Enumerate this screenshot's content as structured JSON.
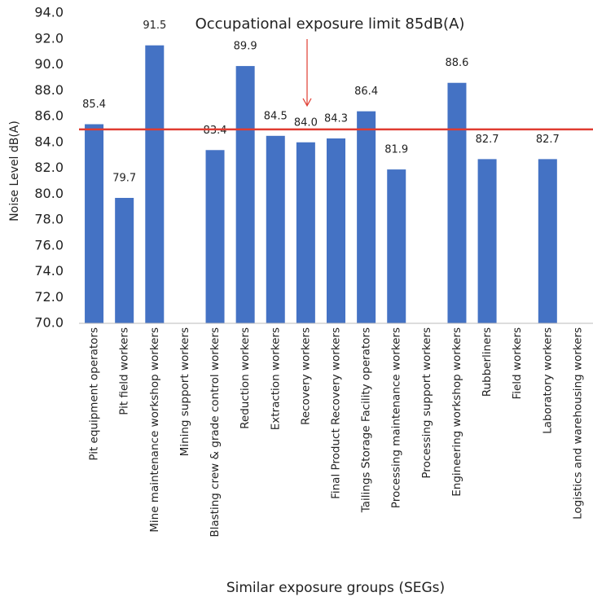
{
  "chart_data": {
    "type": "bar",
    "categories": [
      "Pit equipment operators",
      "Pit field workers",
      "Mine maintenance workshop workers",
      "Mining support workers",
      "Blasting crew & grade control workers",
      "Reduction workers",
      "Extraction workers",
      "Recovery workers",
      "Final Product Recovery workers",
      "Tailings Storage Facility  operators",
      "Processing maintenance workers",
      "Processing support workers",
      "Engineering workshop workers",
      "Rubberliners",
      "Field workers",
      "Laboratory workers",
      "Logistics and warehousing workers"
    ],
    "values": [
      85.4,
      79.7,
      91.5,
      null,
      83.4,
      89.9,
      84.5,
      84.0,
      84.3,
      86.4,
      81.9,
      null,
      88.6,
      82.7,
      null,
      82.7,
      null
    ],
    "value_labels": [
      "85.4",
      "79.7",
      "91.5",
      null,
      "83.4",
      "89.9",
      "84.5",
      "84.0",
      "84.3",
      "86.4",
      "81.9",
      null,
      "88.6",
      "82.7",
      null,
      "82.7",
      null
    ],
    "color": "#4472c4",
    "ylim": [
      70,
      94
    ],
    "yticks": [
      {
        "value": 70,
        "label": "70.0"
      },
      {
        "value": 72,
        "label": "72.0"
      },
      {
        "value": 74,
        "label": "74.0"
      },
      {
        "value": 76,
        "label": "76.0"
      },
      {
        "value": 78,
        "label": "78.0"
      },
      {
        "value": 80,
        "label": "80.0"
      },
      {
        "value": 82,
        "label": "82.0"
      },
      {
        "value": 84,
        "label": "84.0"
      },
      {
        "value": 86,
        "label": "86.0"
      },
      {
        "value": 88,
        "label": "88.0"
      },
      {
        "value": 90,
        "label": "90.0"
      },
      {
        "value": 92,
        "label": "92.0"
      },
      {
        "value": 94,
        "label": "94.0"
      }
    ],
    "grid": false,
    "y_label": "Noise Level dB(A)",
    "x_label": "Similar exposure groups (SEGs)",
    "reference_line": {
      "value": 85,
      "color": "#e03c31",
      "annotation": "Occupational exposure limit 85dB(A)"
    }
  }
}
